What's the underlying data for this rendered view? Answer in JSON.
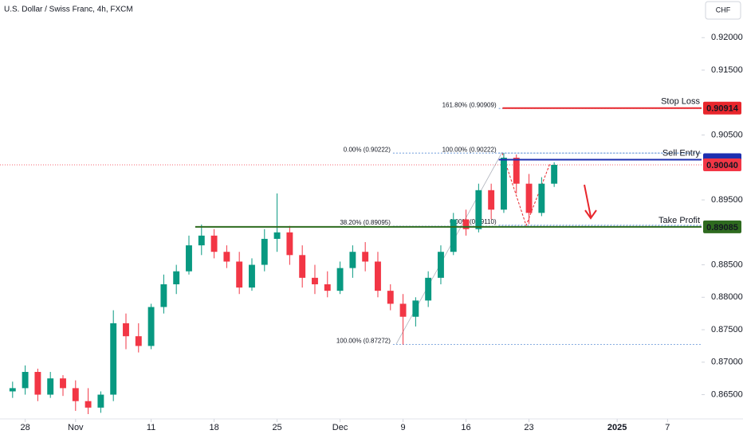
{
  "chart_data": {
    "type": "candlestick",
    "title": "U.S. Dollar / Swiss Franc, 4h, FXCM",
    "currency": "CHF",
    "x": [
      -1,
      0,
      1,
      2,
      3,
      4,
      5,
      6,
      7,
      8,
      9,
      10,
      11,
      12,
      13,
      14,
      15,
      16,
      17,
      18,
      19,
      20,
      21,
      22,
      23,
      24,
      25,
      26,
      27,
      28,
      29,
      30,
      31,
      32,
      33,
      34,
      35,
      36,
      37,
      38,
      39,
      40,
      41,
      42
    ],
    "open": [
      0.8655,
      0.866,
      0.8685,
      0.865,
      0.8675,
      0.866,
      0.864,
      0.863,
      0.865,
      0.876,
      0.874,
      0.8725,
      0.8785,
      0.882,
      0.884,
      0.888,
      0.8895,
      0.887,
      0.8855,
      0.8815,
      0.885,
      0.889,
      0.89,
      0.8865,
      0.883,
      0.882,
      0.881,
      0.8845,
      0.887,
      0.8855,
      0.881,
      0.879,
      0.877,
      0.8795,
      0.883,
      0.887,
      0.892,
      0.8905,
      0.8965,
      0.8935,
      0.9015,
      0.8975,
      0.893,
      0.8975
    ],
    "high": [
      0.867,
      0.8695,
      0.869,
      0.8685,
      0.868,
      0.8672,
      0.866,
      0.8655,
      0.878,
      0.8775,
      0.876,
      0.879,
      0.8835,
      0.885,
      0.8895,
      0.8912,
      0.8905,
      0.888,
      0.887,
      0.886,
      0.8905,
      0.896,
      0.891,
      0.888,
      0.885,
      0.884,
      0.8855,
      0.888,
      0.8885,
      0.887,
      0.882,
      0.8805,
      0.88,
      0.884,
      0.888,
      0.893,
      0.8935,
      0.8975,
      0.8975,
      0.90222,
      0.902,
      0.899,
      0.8985,
      0.9008
    ],
    "low": [
      0.8645,
      0.865,
      0.864,
      0.8645,
      0.8648,
      0.8625,
      0.862,
      0.8622,
      0.864,
      0.872,
      0.8715,
      0.872,
      0.8775,
      0.8805,
      0.8835,
      0.8865,
      0.886,
      0.8845,
      0.8805,
      0.881,
      0.884,
      0.887,
      0.885,
      0.8815,
      0.8805,
      0.88,
      0.8805,
      0.883,
      0.884,
      0.88,
      0.878,
      0.87272,
      0.8755,
      0.8785,
      0.882,
      0.8865,
      0.8895,
      0.89,
      0.892,
      0.893,
      0.896,
      0.8913,
      0.8925,
      0.897
    ],
    "close": [
      0.866,
      0.8685,
      0.865,
      0.8675,
      0.866,
      0.864,
      0.863,
      0.865,
      0.876,
      0.874,
      0.8725,
      0.8785,
      0.882,
      0.884,
      0.888,
      0.8895,
      0.887,
      0.8855,
      0.8815,
      0.885,
      0.889,
      0.89,
      0.8865,
      0.883,
      0.882,
      0.881,
      0.8845,
      0.887,
      0.8855,
      0.881,
      0.879,
      0.877,
      0.8795,
      0.883,
      0.887,
      0.892,
      0.8905,
      0.8965,
      0.8935,
      0.9015,
      0.8975,
      0.893,
      0.8975,
      0.9004
    ],
    "up_color": "#089981",
    "down_color": "#f23645",
    "xlim": [
      -2,
      53.7
    ],
    "ylim": [
      0.862,
      0.9258
    ],
    "xticks": [
      {
        "value": 0,
        "label": "28"
      },
      {
        "value": 4,
        "label": "Nov"
      },
      {
        "value": 10,
        "label": "11"
      },
      {
        "value": 15,
        "label": "18"
      },
      {
        "value": 20,
        "label": "25"
      },
      {
        "value": 25,
        "label": "Dec"
      },
      {
        "value": 30,
        "label": "9"
      },
      {
        "value": 35,
        "label": "16"
      },
      {
        "value": 40,
        "label": "23"
      },
      {
        "value": 47,
        "label": "2025"
      },
      {
        "value": 51,
        "label": "7"
      }
    ],
    "yticks": [
      {
        "value": 0.92,
        "label": "0.92000"
      },
      {
        "value": 0.915,
        "label": "0.91500"
      },
      {
        "value": 0.905,
        "label": "0.90500"
      },
      {
        "value": 0.895,
        "label": "0.89500"
      },
      {
        "value": 0.885,
        "label": "0.88500"
      },
      {
        "value": 0.88,
        "label": "0.88000"
      },
      {
        "value": 0.875,
        "label": "0.87500"
      },
      {
        "value": 0.87,
        "label": "0.87000"
      },
      {
        "value": 0.865,
        "label": "0.86500"
      }
    ],
    "levels": [
      {
        "name": "Stop Loss",
        "value": 0.90914,
        "label": "0.90914",
        "color": "#e8262c",
        "from": 37.9
      },
      {
        "name": "Sell Entry",
        "value": 0.9012,
        "color": "#1e2fb0",
        "from": 37.6
      },
      {
        "name": "Take Profit",
        "value": 0.89085,
        "label": "0.89085",
        "color": "#2e6b1f",
        "from": 13.5
      }
    ],
    "last_price": {
      "value": 0.9004,
      "label": "0.90040",
      "color": "#f23645"
    },
    "fib_color": "#5b8fd6",
    "fibs": [
      {
        "from": 29.2,
        "levels": [
          {
            "text": "0.00% (0.90222)",
            "value": 0.90222
          },
          {
            "text": "38.20% (0.89095)",
            "value": 0.89095
          },
          {
            "text": "100.00% (0.87272)",
            "value": 0.87272
          }
        ]
      },
      {
        "from": 37.6,
        "levels": [
          {
            "text": "161.80% (0.90909)",
            "value": 0.90909
          },
          {
            "text": "100.00% (0.90222)",
            "value": 0.90222
          },
          {
            "text": "0.00% (0.89110)",
            "value": 0.8911
          }
        ]
      }
    ]
  }
}
